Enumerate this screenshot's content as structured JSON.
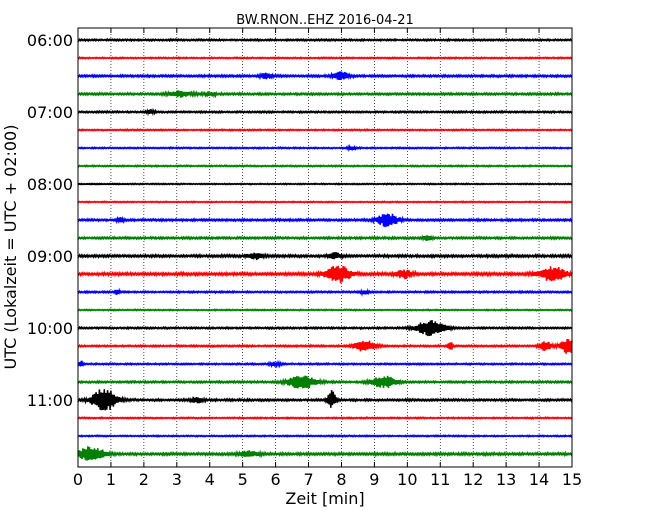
{
  "chart_data": {
    "type": "line",
    "title": "BW.RNON..EHZ 2016-04-21",
    "xlabel": "Zeit  [min]",
    "ylabel": "UTC (Lokalzeit = UTC + 02:00)",
    "xlim": [
      0,
      15
    ],
    "x_ticks": [
      "0",
      "1",
      "2",
      "3",
      "4",
      "5",
      "6",
      "7",
      "8",
      "9",
      "10",
      "11",
      "12",
      "13",
      "14",
      "15"
    ],
    "y_ticks": [
      "06:00",
      "07:00",
      "08:00",
      "09:00",
      "10:00",
      "11:00"
    ],
    "rows_per_hour": 4,
    "row_minutes": 15,
    "grid": "vertical-dotted",
    "color_cycle": [
      "#000000",
      "#ff0000",
      "#0000ff",
      "#008000"
    ],
    "traces": [
      {
        "start": "06:00",
        "color": "#000000",
        "noise": 0.5,
        "events": []
      },
      {
        "start": "06:15",
        "color": "#ff0000",
        "noise": 0.4,
        "events": []
      },
      {
        "start": "06:30",
        "color": "#0000ff",
        "noise": 0.6,
        "events": [
          {
            "t": 5.7,
            "amp": 3,
            "dur": 0.3
          },
          {
            "t": 8.0,
            "amp": 4,
            "dur": 0.4
          }
        ]
      },
      {
        "start": "06:45",
        "color": "#008000",
        "noise": 0.6,
        "events": [
          {
            "t": 3.1,
            "amp": 3,
            "dur": 0.6
          },
          {
            "t": 4.0,
            "amp": 2,
            "dur": 0.3
          }
        ]
      },
      {
        "start": "07:00",
        "color": "#000000",
        "noise": 0.5,
        "events": [
          {
            "t": 2.2,
            "amp": 2,
            "dur": 0.2
          }
        ]
      },
      {
        "start": "07:15",
        "color": "#ff0000",
        "noise": 0.4,
        "events": []
      },
      {
        "start": "07:30",
        "color": "#0000ff",
        "noise": 0.4,
        "events": [
          {
            "t": 8.3,
            "amp": 2,
            "dur": 0.2
          }
        ]
      },
      {
        "start": "07:45",
        "color": "#008000",
        "noise": 0.4,
        "events": []
      },
      {
        "start": "08:00",
        "color": "#000000",
        "noise": 0.35,
        "events": []
      },
      {
        "start": "08:15",
        "color": "#ff0000",
        "noise": 0.35,
        "events": []
      },
      {
        "start": "08:30",
        "color": "#0000ff",
        "noise": 0.6,
        "events": [
          {
            "t": 1.3,
            "amp": 2,
            "dur": 0.2
          },
          {
            "t": 9.4,
            "amp": 7,
            "dur": 0.5
          }
        ]
      },
      {
        "start": "08:45",
        "color": "#008000",
        "noise": 0.6,
        "events": [
          {
            "t": 10.6,
            "amp": 3,
            "dur": 0.2
          }
        ]
      },
      {
        "start": "09:00",
        "color": "#000000",
        "noise": 0.7,
        "events": [
          {
            "t": 5.4,
            "amp": 3,
            "dur": 0.4
          },
          {
            "t": 7.8,
            "amp": 3,
            "dur": 0.3
          }
        ]
      },
      {
        "start": "09:15",
        "color": "#ff0000",
        "noise": 0.8,
        "events": [
          {
            "t": 7.9,
            "amp": 9,
            "dur": 0.6
          },
          {
            "t": 9.9,
            "amp": 4,
            "dur": 0.4
          },
          {
            "t": 14.4,
            "amp": 7,
            "dur": 0.7
          }
        ]
      },
      {
        "start": "09:30",
        "color": "#0000ff",
        "noise": 0.5,
        "events": [
          {
            "t": 1.2,
            "amp": 3,
            "dur": 0.1
          },
          {
            "t": 8.7,
            "amp": 2,
            "dur": 0.2
          }
        ]
      },
      {
        "start": "09:45",
        "color": "#008000",
        "noise": 0.35,
        "events": []
      },
      {
        "start": "10:00",
        "color": "#000000",
        "noise": 0.5,
        "events": [
          {
            "t": 10.7,
            "amp": 8,
            "dur": 0.7
          }
        ]
      },
      {
        "start": "10:15",
        "color": "#ff0000",
        "noise": 0.5,
        "events": [
          {
            "t": 8.7,
            "amp": 6,
            "dur": 0.5
          },
          {
            "t": 11.3,
            "amp": 6,
            "dur": 0.1
          },
          {
            "t": 14.2,
            "amp": 5,
            "dur": 0.3
          },
          {
            "t": 14.9,
            "amp": 8,
            "dur": 0.4
          }
        ]
      },
      {
        "start": "10:30",
        "color": "#0000ff",
        "noise": 0.45,
        "events": [
          {
            "t": 0.1,
            "amp": 3,
            "dur": 0.1
          },
          {
            "t": 6.0,
            "amp": 2,
            "dur": 0.3
          }
        ]
      },
      {
        "start": "10:45",
        "color": "#008000",
        "noise": 0.55,
        "events": [
          {
            "t": 6.8,
            "amp": 7,
            "dur": 0.7
          },
          {
            "t": 9.3,
            "amp": 6,
            "dur": 0.6
          }
        ]
      },
      {
        "start": "11:00",
        "color": "#000000",
        "noise": 0.6,
        "events": [
          {
            "t": 0.8,
            "amp": 12,
            "dur": 0.6
          },
          {
            "t": 3.6,
            "amp": 3,
            "dur": 0.3
          },
          {
            "t": 7.7,
            "amp": 9,
            "dur": 0.2
          }
        ]
      },
      {
        "start": "11:15",
        "color": "#ff0000",
        "noise": 0.4,
        "events": []
      },
      {
        "start": "11:30",
        "color": "#0000ff",
        "noise": 0.4,
        "events": []
      },
      {
        "start": "11:45",
        "color": "#008000",
        "noise": 0.7,
        "events": [
          {
            "t": 0.4,
            "amp": 7,
            "dur": 0.7
          },
          {
            "t": 5.2,
            "amp": 3,
            "dur": 0.5
          }
        ]
      }
    ]
  }
}
